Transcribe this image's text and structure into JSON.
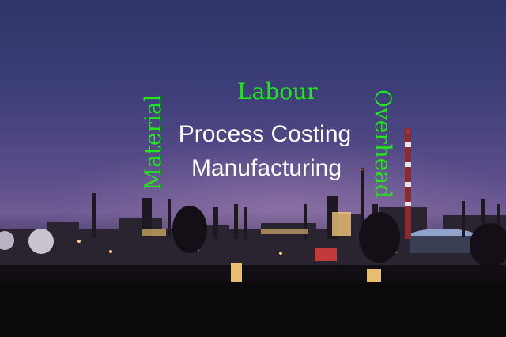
{
  "overlay": {
    "labour": "Labour",
    "material": "Material",
    "overhead": "Overhead",
    "process_costing": "Process Costing",
    "manufacturing": "Manufacturing"
  },
  "colors": {
    "accent_green": "#22e61a",
    "text_white": "#ffffff",
    "sky_top": "#2f3569",
    "sky_horizon": "#6e5a94"
  }
}
